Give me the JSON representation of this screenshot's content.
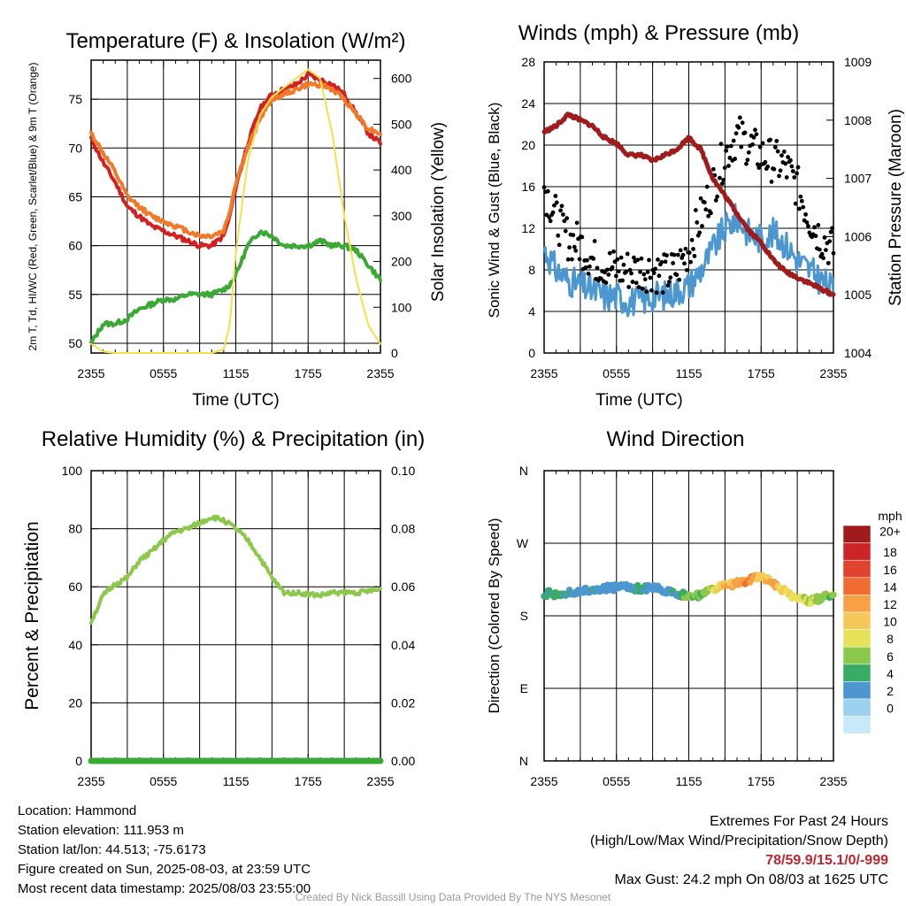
{
  "chart_data": [
    {
      "type": "line",
      "title": "Temperature (F) & Insolation (W/m²)",
      "xlabel": "Time (UTC)",
      "ylabel": "2m T, Td, HI/WC (Red, Green, Scarlet/Blue) & 9m T (Orange)",
      "y2label": "Solar Insolation (Yellow)",
      "x_ticks": [
        "2355",
        "0555",
        "1155",
        "1755",
        "2355"
      ],
      "ylim": [
        49,
        79
      ],
      "y_ticks": [
        50,
        55,
        60,
        65,
        70,
        75
      ],
      "y2lim": [
        0,
        640
      ],
      "y2_ticks": [
        0,
        100,
        200,
        300,
        400,
        500,
        600
      ],
      "x_hours": [
        0,
        1,
        2,
        3,
        4,
        5,
        6,
        7,
        8,
        9,
        10,
        11,
        11.5,
        12,
        13,
        14,
        15,
        16,
        17,
        18,
        19,
        20,
        21,
        22,
        23,
        24
      ],
      "series": [
        {
          "color": "#d42020",
          "axis": "left",
          "values": [
            71,
            68.5,
            66.5,
            64,
            63,
            62,
            61.5,
            61,
            60.5,
            60,
            60,
            61,
            63,
            66,
            70.5,
            74,
            75.5,
            76,
            76.5,
            77.5,
            77,
            76.5,
            75.5,
            73.5,
            71.5,
            70.5
          ]
        },
        {
          "color": "#f07a2a",
          "axis": "left",
          "values": [
            71.5,
            69.5,
            67.5,
            65,
            64,
            63,
            62.5,
            62,
            61.5,
            61,
            61,
            61.5,
            63.5,
            66.5,
            70,
            73,
            75,
            75.5,
            76,
            76.5,
            76.5,
            76,
            75,
            73.5,
            72,
            71.5
          ]
        },
        {
          "color": "#3aaa35",
          "axis": "left",
          "values": [
            50,
            52,
            52,
            52.5,
            53.5,
            54,
            54.5,
            54.5,
            55,
            55,
            55,
            55.5,
            56,
            57,
            60,
            61.5,
            61,
            60,
            60,
            60,
            60.5,
            60,
            60,
            59.5,
            58,
            56.5
          ]
        },
        {
          "color": "#f5e04a",
          "axis": "right",
          "values": [
            20,
            3,
            0,
            0,
            0,
            0,
            0,
            0,
            0,
            0,
            0,
            8,
            60,
            220,
            420,
            520,
            560,
            580,
            600,
            620,
            600,
            480,
            300,
            160,
            60,
            20
          ]
        }
      ]
    },
    {
      "type": "line",
      "title": "Winds (mph) & Pressure (mb)",
      "xlabel": "Time (UTC)",
      "ylabel": "Sonic Wind & Gust (Blue, Black)",
      "y2label": "Station Pressure (Maroon)",
      "x_ticks": [
        "2355",
        "0555",
        "1155",
        "1755",
        "2355"
      ],
      "ylim": [
        0,
        28
      ],
      "y_ticks": [
        0,
        4,
        8,
        12,
        16,
        20,
        24,
        28
      ],
      "y2lim": [
        1004,
        1009
      ],
      "y2_ticks": [
        1004,
        1005,
        1006,
        1007,
        1008,
        1009
      ],
      "x_hours": [
        0,
        1,
        2,
        3,
        4,
        5,
        6,
        7,
        8,
        9,
        10,
        11,
        12,
        13,
        14,
        15,
        16,
        17,
        18,
        19,
        20,
        21,
        22,
        23,
        24
      ],
      "series": [
        {
          "color": "#4d97d0",
          "axis": "left",
          "kind": "line",
          "values": [
            10,
            8,
            7,
            6.5,
            6,
            5.5,
            5.5,
            5,
            5,
            5.5,
            5.5,
            6,
            6.5,
            8,
            10,
            12,
            13,
            11.5,
            11,
            11.5,
            10.5,
            9,
            8,
            7,
            6
          ]
        },
        {
          "color": "#000000",
          "axis": "left",
          "kind": "scatter",
          "values": [
            16,
            13,
            11,
            10.5,
            9,
            8.5,
            8,
            8,
            8,
            8,
            7.5,
            8,
            10,
            13,
            16,
            19,
            21,
            20,
            19,
            18.5,
            18,
            16,
            13,
            11,
            10
          ]
        },
        {
          "color": "#a01c1c",
          "axis": "right",
          "kind": "line",
          "values": [
            1007.8,
            1007.9,
            1008.1,
            1008.0,
            1007.9,
            1007.7,
            1007.6,
            1007.4,
            1007.4,
            1007.3,
            1007.4,
            1007.5,
            1007.7,
            1007.5,
            1007.0,
            1006.7,
            1006.4,
            1006.1,
            1005.9,
            1005.6,
            1005.4,
            1005.3,
            1005.2,
            1005.1,
            1005.0
          ]
        }
      ]
    },
    {
      "type": "line",
      "title": "Relative Humidity (%) & Precipitation (in)",
      "xlabel": "",
      "ylabel": "Percent & Precipitation",
      "x_ticks": [
        "2355",
        "0555",
        "1155",
        "1755",
        "2355"
      ],
      "ylim": [
        0,
        100
      ],
      "y_ticks": [
        0,
        20,
        40,
        60,
        80,
        100
      ],
      "y2lim": [
        0,
        0.1
      ],
      "y2_ticks": [
        "0.00",
        "0.02",
        "0.04",
        "0.06",
        "0.08",
        "0.10"
      ],
      "x_hours": [
        0,
        1,
        2,
        3,
        4,
        5,
        6,
        7,
        8,
        9,
        10,
        11,
        12,
        13,
        14,
        15,
        16,
        17,
        18,
        19,
        20,
        21,
        22,
        23,
        24
      ],
      "series": [
        {
          "color": "#8cc84b",
          "axis": "left",
          "values": [
            48,
            57,
            61,
            63,
            69,
            72,
            76,
            79,
            80,
            82,
            84,
            83,
            80,
            76,
            70,
            63,
            58,
            58,
            57.5,
            57,
            58,
            58,
            58,
            58.5,
            59
          ]
        },
        {
          "color": "#3aaa35",
          "axis": "right",
          "values": [
            0,
            0,
            0,
            0,
            0,
            0,
            0,
            0,
            0,
            0,
            0,
            0,
            0,
            0,
            0,
            0,
            0,
            0,
            0,
            0,
            0,
            0,
            0,
            0,
            0
          ]
        }
      ]
    },
    {
      "type": "scatter",
      "title": "Wind Direction",
      "ylabel": "Direction (Colored By Speed)",
      "x_ticks": [
        "2355",
        "0555",
        "1155",
        "1755",
        "2355"
      ],
      "y_ticks": [
        "N",
        "E",
        "S",
        "W",
        "N"
      ],
      "ylim": [
        0,
        360
      ],
      "legend_title": "mph",
      "legend_labels": [
        "20+",
        "18",
        "16",
        "14",
        "12",
        "10",
        "8",
        "6",
        "4",
        "2",
        "0"
      ],
      "legend_colors": [
        "#a01c1c",
        "#cc2427",
        "#e0432e",
        "#f06c32",
        "#f7a144",
        "#f5c957",
        "#e6e35a",
        "#8cc84b",
        "#3aaa67",
        "#4d97d0",
        "#9ad1ee",
        "#c9e9f8"
      ],
      "x_hours": [
        0,
        1,
        2,
        3,
        4,
        5,
        6,
        7,
        8,
        9,
        10,
        11,
        12,
        13,
        14,
        15,
        16,
        17,
        18,
        19,
        20,
        21,
        22,
        23,
        24
      ],
      "direction": [
        208,
        207,
        208,
        210,
        212,
        214,
        215,
        215,
        214,
        215,
        212,
        208,
        205,
        206,
        212,
        218,
        220,
        225,
        228,
        220,
        210,
        202,
        198,
        202,
        206
      ],
      "speed": [
        7,
        6,
        6,
        5,
        6,
        5,
        5,
        5,
        6,
        5,
        5,
        6,
        9,
        8,
        10,
        14,
        15,
        16,
        13,
        14,
        12,
        11,
        10,
        9,
        8
      ]
    }
  ],
  "info": {
    "location": "Location: Hammond",
    "elevation": "Station elevation: 111.953 m",
    "latlon": "Station lat/lon: 44.513; -75.6173",
    "created": "Figure created on Sun, 2025-08-03, at 23:59 UTC",
    "recent": "Most recent data timestamp: 2025/08/03 23:55:00"
  },
  "extremes": {
    "title": "Extremes For Past 24 Hours",
    "subtitle": "(High/Low/Max Wind/Precipitation/Snow Depth)",
    "values": "78/59.9/15.1/0/-999",
    "gust": "Max Gust: 24.2 mph On 08/03 at 1625 UTC"
  },
  "credit": "Created By Nick Bassill Using Data Provided By The NYS Mesonet"
}
